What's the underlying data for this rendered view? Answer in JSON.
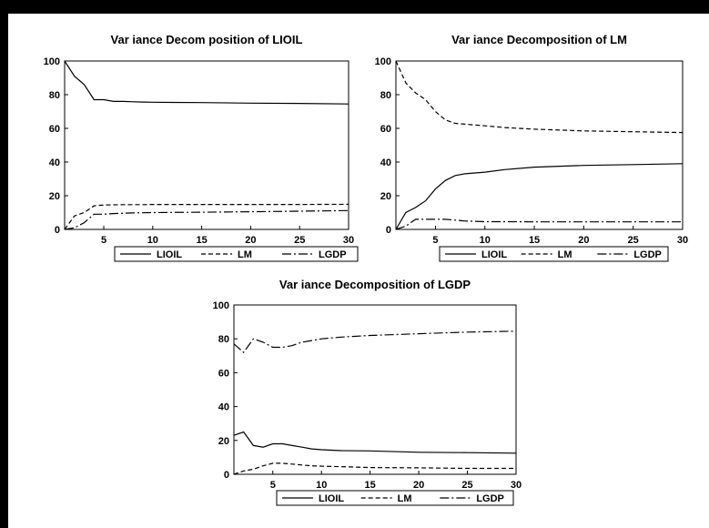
{
  "chart_data": [
    {
      "type": "line",
      "title": "Var iance Decom position of LIOIL",
      "x_ticks": [
        "5",
        "10",
        "15",
        "20",
        "25",
        "30"
      ],
      "y_ticks": [
        "0",
        "20",
        "40",
        "60",
        "80",
        "100"
      ],
      "xlim": [
        1,
        30
      ],
      "ylim": [
        0,
        100
      ],
      "legend_position": "bottom",
      "legend": [
        "LIOIL",
        "LM",
        "LGDP"
      ],
      "series": [
        {
          "name": "LIOIL",
          "style": "solid",
          "x": [
            1,
            2,
            3,
            4,
            5,
            6,
            7,
            8,
            9,
            10,
            12,
            15,
            20,
            25,
            30
          ],
          "y": [
            100,
            91,
            86,
            77,
            77,
            76,
            76,
            75.8,
            75.6,
            75.5,
            75.4,
            75.3,
            75,
            74.8,
            74.5
          ]
        },
        {
          "name": "LM",
          "style": "dash",
          "x": [
            1,
            2,
            3,
            4,
            5,
            6,
            7,
            8,
            9,
            10,
            12,
            15,
            20,
            25,
            30
          ],
          "y": [
            0,
            8,
            10,
            14,
            14.5,
            14.6,
            14.7,
            14.7,
            14.7,
            14.8,
            14.8,
            14.8,
            14.8,
            14.8,
            14.9
          ]
        },
        {
          "name": "LGDP",
          "style": "longdash",
          "x": [
            1,
            2,
            3,
            4,
            5,
            6,
            7,
            8,
            9,
            10,
            12,
            15,
            20,
            25,
            30
          ],
          "y": [
            0,
            1,
            4,
            9,
            9,
            9.4,
            9.6,
            9.8,
            9.9,
            10,
            10.1,
            10.2,
            10.5,
            10.8,
            11.2
          ]
        }
      ]
    },
    {
      "type": "line",
      "title": "Var iance Decomposition of LM",
      "x_ticks": [
        "5",
        "10",
        "15",
        "20",
        "25",
        "30"
      ],
      "y_ticks": [
        "0",
        "20",
        "40",
        "60",
        "80",
        "100"
      ],
      "xlim": [
        1,
        30
      ],
      "ylim": [
        0,
        100
      ],
      "legend_position": "bottom",
      "legend": [
        "LIOIL",
        "LM",
        "LGDP"
      ],
      "series": [
        {
          "name": "LIOIL",
          "style": "solid",
          "x": [
            1,
            2,
            3,
            4,
            5,
            6,
            7,
            8,
            9,
            10,
            12,
            15,
            20,
            25,
            30
          ],
          "y": [
            0,
            10,
            13,
            17,
            24,
            29,
            32,
            33,
            33.5,
            34,
            35.5,
            37,
            38,
            38.5,
            39
          ]
        },
        {
          "name": "LM",
          "style": "dash",
          "x": [
            1,
            2,
            3,
            4,
            5,
            6,
            7,
            8,
            9,
            10,
            12,
            15,
            20,
            25,
            30
          ],
          "y": [
            100,
            87,
            81,
            77,
            70,
            65,
            63,
            62.5,
            62,
            61.5,
            60.5,
            59.5,
            58.5,
            58,
            57.5
          ]
        },
        {
          "name": "LGDP",
          "style": "longdash",
          "x": [
            1,
            2,
            3,
            4,
            5,
            6,
            7,
            8,
            9,
            10,
            12,
            15,
            20,
            25,
            30
          ],
          "y": [
            0,
            2,
            6,
            6,
            6,
            6,
            5.5,
            5,
            4.8,
            4.6,
            4.6,
            4.5,
            4.5,
            4.5,
            4.5
          ]
        }
      ]
    },
    {
      "type": "line",
      "title": "Var iance Decomposition of LGDP",
      "x_ticks": [
        "5",
        "10",
        "15",
        "20",
        "25",
        "30"
      ],
      "y_ticks": [
        "0",
        "20",
        "40",
        "60",
        "80",
        "100"
      ],
      "xlim": [
        1,
        30
      ],
      "ylim": [
        0,
        100
      ],
      "legend_position": "bottom",
      "legend": [
        "LIOIL",
        "LM",
        "LGDP"
      ],
      "series": [
        {
          "name": "LIOIL",
          "style": "solid",
          "x": [
            1,
            2,
            3,
            4,
            5,
            6,
            7,
            8,
            9,
            10,
            12,
            15,
            20,
            25,
            30
          ],
          "y": [
            23,
            25,
            17,
            16,
            18,
            18,
            17,
            16,
            15,
            14.5,
            14,
            13.8,
            13,
            12.8,
            12.5
          ]
        },
        {
          "name": "LM",
          "style": "dash",
          "x": [
            1,
            2,
            3,
            4,
            5,
            6,
            7,
            8,
            9,
            10,
            12,
            15,
            20,
            25,
            30
          ],
          "y": [
            0,
            2,
            3,
            5,
            6.5,
            6.5,
            6,
            5.5,
            5,
            4.8,
            4.5,
            4,
            3.8,
            3.5,
            3.5
          ]
        },
        {
          "name": "LGDP",
          "style": "longdash",
          "x": [
            1,
            2,
            3,
            4,
            5,
            6,
            7,
            8,
            9,
            10,
            12,
            15,
            20,
            25,
            30
          ],
          "y": [
            77,
            72,
            80,
            78,
            75,
            75,
            76,
            78,
            79,
            80,
            81,
            82,
            83,
            84,
            84.5
          ]
        }
      ]
    }
  ]
}
